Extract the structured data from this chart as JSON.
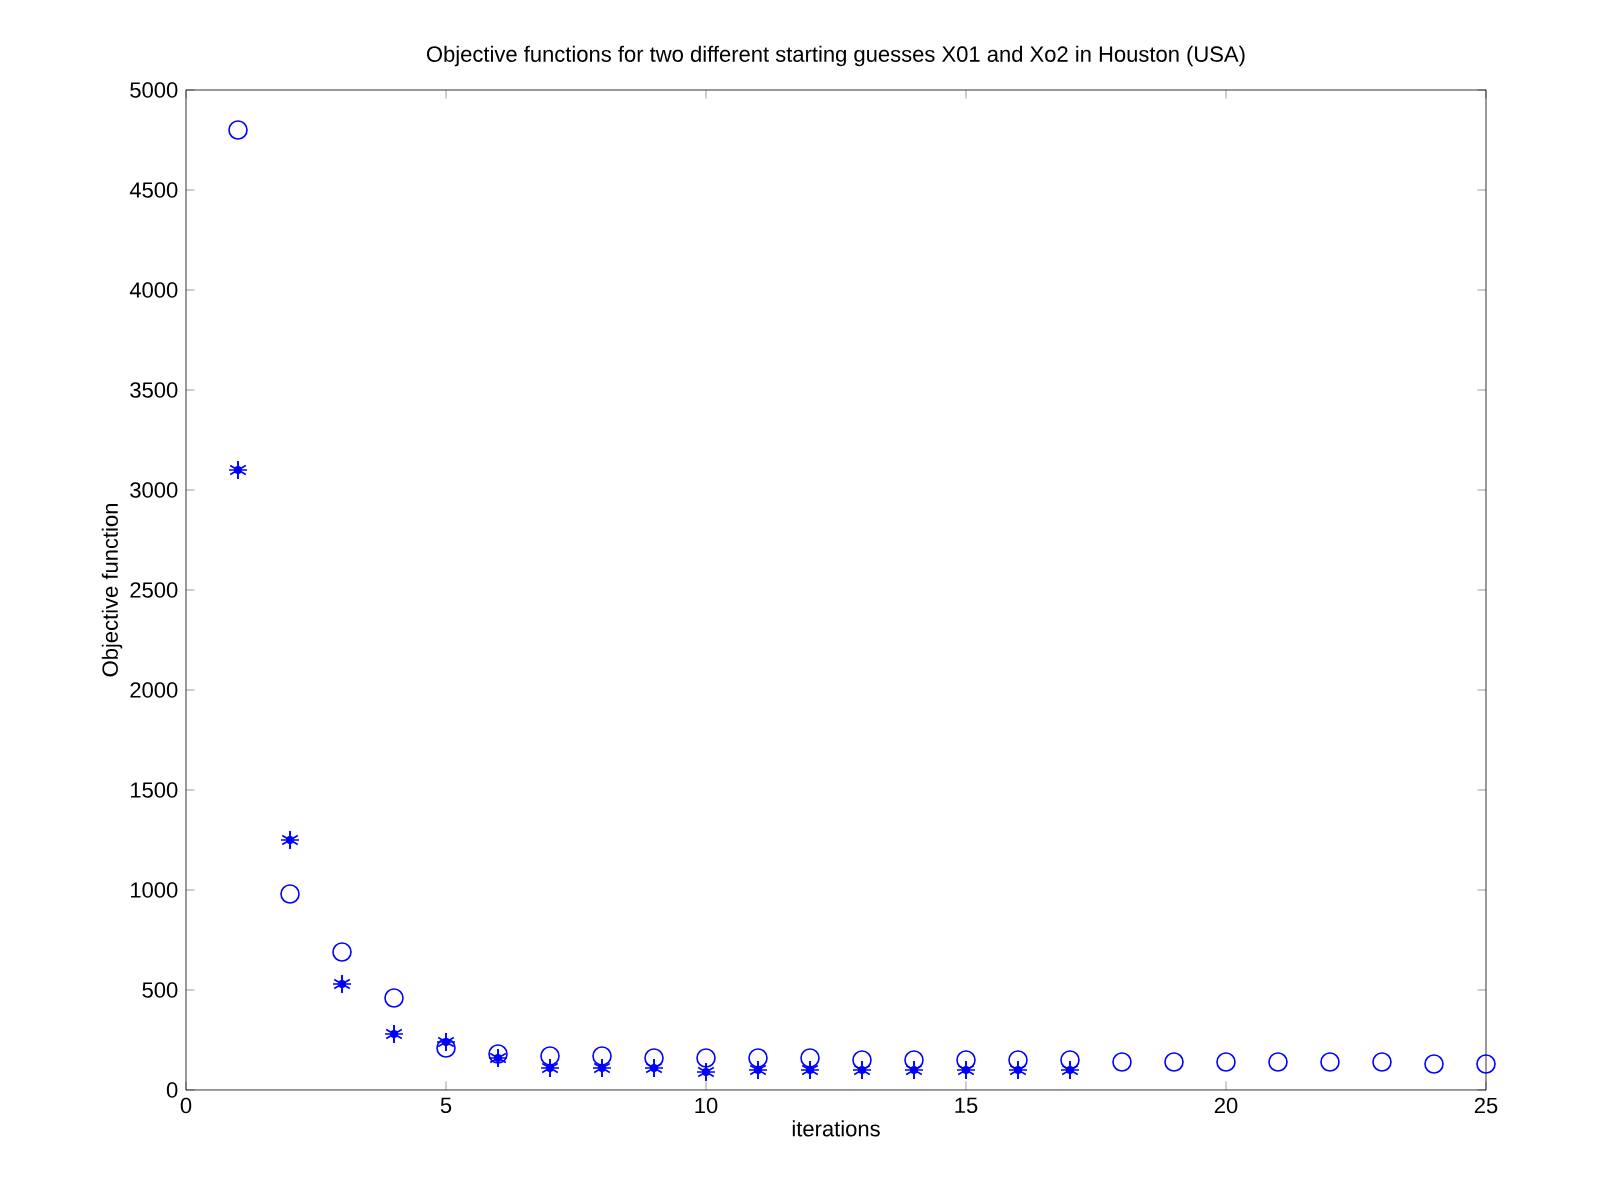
{
  "chart_data": {
    "type": "scatter",
    "title": "Objective functions for two different starting guesses X01 and Xo2  in Houston (USA)",
    "xlabel": "iterations",
    "ylabel": "Objective function",
    "xlim": [
      0,
      25
    ],
    "ylim": [
      0,
      5000
    ],
    "xticks": [
      0,
      5,
      10,
      15,
      20,
      25
    ],
    "yticks": [
      0,
      500,
      1000,
      1500,
      2000,
      2500,
      3000,
      3500,
      4000,
      4500,
      5000
    ],
    "grid": false,
    "series": [
      {
        "color": "#0000ff",
        "marker": "circle",
        "x": [
          1,
          2,
          3,
          4,
          5,
          6,
          7,
          8,
          9,
          10,
          11,
          12,
          13,
          14,
          15,
          16,
          17,
          18,
          19,
          20,
          21,
          22,
          23,
          24,
          25
        ],
        "values": [
          4800,
          980,
          690,
          460,
          210,
          180,
          170,
          170,
          160,
          160,
          160,
          160,
          150,
          150,
          150,
          150,
          150,
          140,
          140,
          140,
          140,
          140,
          140,
          130,
          130
        ]
      },
      {
        "color": "#0000ff",
        "marker": "cross",
        "x": [
          1,
          2,
          3,
          4,
          5,
          6,
          7,
          8,
          9,
          10,
          11,
          12,
          13,
          14,
          15,
          16,
          17
        ],
        "values": [
          3100,
          1250,
          530,
          280,
          240,
          160,
          110,
          110,
          110,
          90,
          100,
          100,
          100,
          100,
          100,
          100,
          100
        ]
      }
    ]
  }
}
